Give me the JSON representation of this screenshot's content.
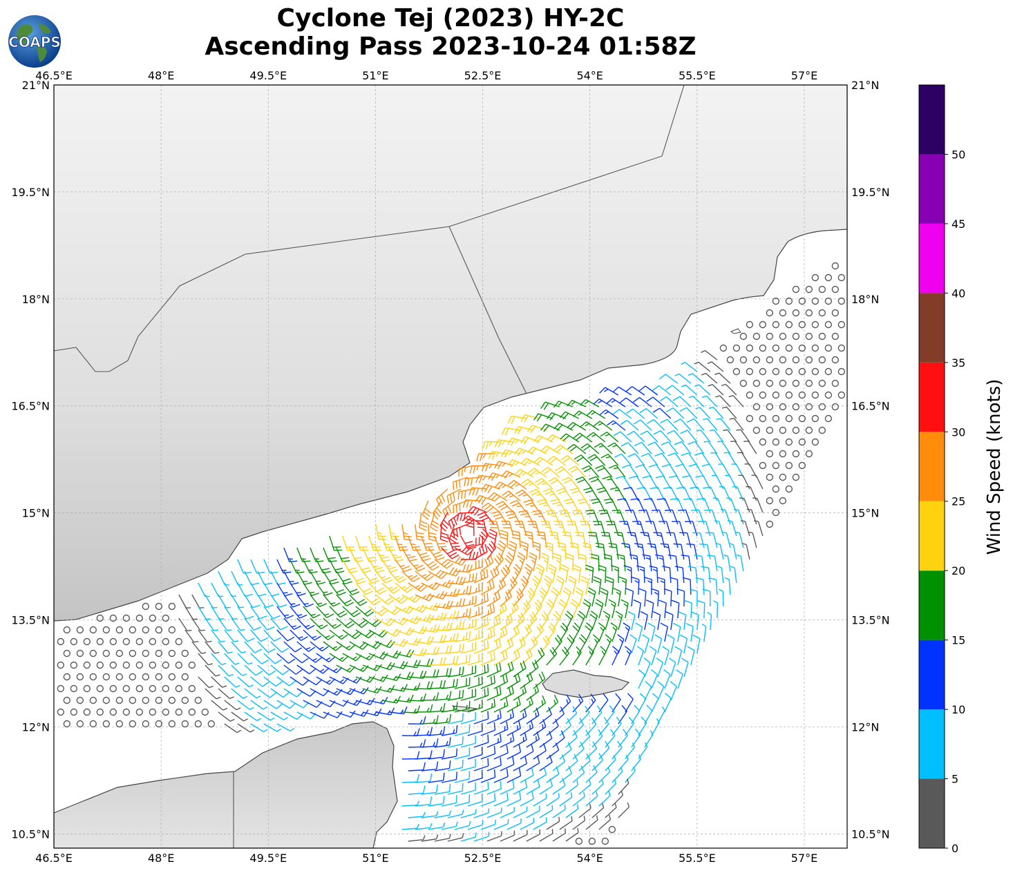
{
  "title": {
    "line1": "Cyclone Tej (2023) HY-2C",
    "line2": "Ascending Pass 2023-10-24 01:58Z"
  },
  "logo": {
    "text": "COAPS",
    "icon": "globe-logo-icon"
  },
  "map": {
    "lon_range": [
      46.5,
      57.6
    ],
    "lat_range": [
      10.3,
      21.0
    ],
    "gridlines": true,
    "lon_ticks": [
      "46.5°E",
      "48°E",
      "49.5°E",
      "51°E",
      "52.5°E",
      "54°E",
      "55.5°E",
      "57°E"
    ],
    "lat_ticks": [
      "10.5°N",
      "12°N",
      "13.5°N",
      "15°N",
      "16.5°N",
      "18°N",
      "19.5°N",
      "21°N"
    ],
    "land_color": "#e2e2e2",
    "coastline_color": "#444444"
  },
  "colorbar": {
    "label": "Wind Speed (knots)",
    "ticks": [
      "0",
      "5",
      "10",
      "15",
      "20",
      "25",
      "30",
      "35",
      "40",
      "45",
      "50"
    ],
    "bins": [
      {
        "min": 0,
        "max": 5,
        "color": "#595959"
      },
      {
        "min": 5,
        "max": 10,
        "color": "#00bfff"
      },
      {
        "min": 10,
        "max": 15,
        "color": "#0033ff"
      },
      {
        "min": 15,
        "max": 20,
        "color": "#009100"
      },
      {
        "min": 20,
        "max": 25,
        "color": "#ffd20f"
      },
      {
        "min": 25,
        "max": 30,
        "color": "#ff8c0a"
      },
      {
        "min": 30,
        "max": 35,
        "color": "#ff0f0f"
      },
      {
        "min": 35,
        "max": 40,
        "color": "#823c28"
      },
      {
        "min": 40,
        "max": 45,
        "color": "#ef00ef"
      },
      {
        "min": 45,
        "max": 50,
        "color": "#8700b3"
      },
      {
        "min": 50,
        "max": 55,
        "color": "#2d0064"
      }
    ]
  },
  "chart_data": {
    "type": "scatter",
    "title": "Cyclone Tej (2023) HY-2C Ascending Pass 2023-10-24 01:58Z",
    "variable": "wind barbs",
    "units": "knots",
    "swath_regions": [
      {
        "lon": [
          46.5,
          49.5
        ],
        "lat": [
          11.3,
          13.7
        ],
        "speed_range": "0-10"
      },
      {
        "lon": [
          50.0,
          51.0
        ],
        "lat": [
          11.6,
          14.6
        ],
        "speed_range": "5-15"
      },
      {
        "lon": [
          51.0,
          52.8
        ],
        "lat": [
          10.3,
          14.9
        ],
        "speed_range": "15-30"
      },
      {
        "lon": [
          52.2,
          54.0
        ],
        "lat": [
          14.6,
          16.5
        ],
        "speed_range": "20-30"
      },
      {
        "lon": [
          52.5,
          54.5
        ],
        "lat": [
          13.0,
          15.2
        ],
        "speed_range": "15-20"
      },
      {
        "lon": [
          52.0,
          54.8
        ],
        "lat": [
          10.3,
          12.2
        ],
        "speed_range": "5-15"
      },
      {
        "lon": [
          54.0,
          57.6
        ],
        "lat": [
          13.5,
          18.4
        ],
        "speed_range": "5-15"
      }
    ],
    "max_wind_location": {
      "lon": 52.3,
      "lat": 14.7,
      "speed_range": "30-35"
    }
  }
}
